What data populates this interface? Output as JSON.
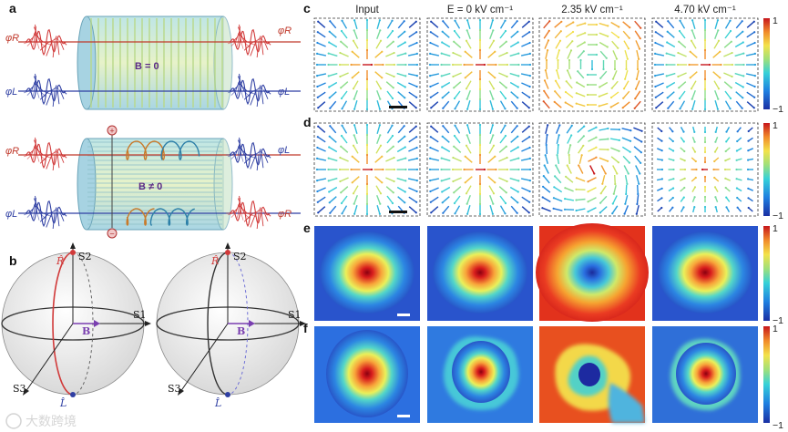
{
  "panels": {
    "a": "a",
    "b": "b",
    "c": "c",
    "d": "d",
    "e": "e",
    "f": "f"
  },
  "panel_a": {
    "top": {
      "phi_r": "φR",
      "phi_l": "φL",
      "field": "B = 0"
    },
    "bottom": {
      "phi_r": "φR",
      "phi_l": "φL",
      "field": "B ≠ 0",
      "plus": "+",
      "minus": "−"
    }
  },
  "panel_b": {
    "left": {
      "s1": "S1",
      "s2": "S2",
      "s3": "S3",
      "r": "R̂",
      "l": "L̂",
      "b": "B"
    },
    "right": {
      "s1": "S1",
      "s2": "S2",
      "s3": "S3",
      "r": "R̂",
      "l": "L̂",
      "b": "B"
    }
  },
  "columns": [
    "Input",
    "E = 0 kV cm⁻¹",
    "2.35 kV cm⁻¹",
    "4.70 kV cm⁻¹"
  ],
  "colorbar": {
    "max": "1",
    "min": "−1"
  },
  "colors": {
    "red_beam": "#d13a3a",
    "blue_beam": "#2f3fa3",
    "field": "#7a3fb0"
  },
  "watermark": "大数跨境"
}
